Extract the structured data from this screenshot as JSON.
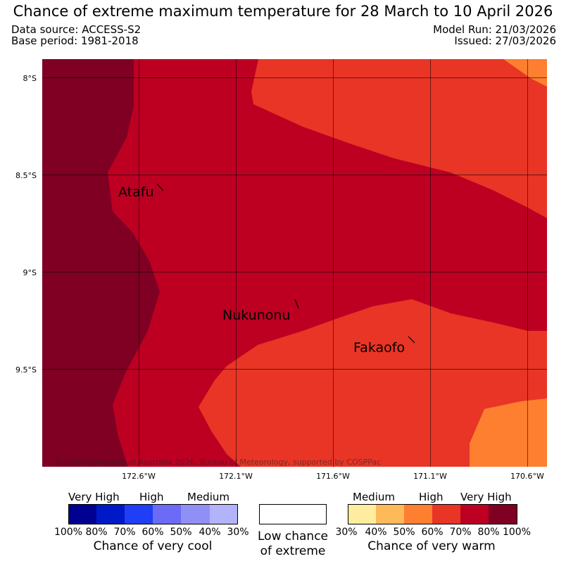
{
  "title": "Chance of extreme maximum temperature for 28 March to 10 April 2026",
  "meta": {
    "data_source": "Data source: ACCESS-S2",
    "base_period": "Base period: 1981-2018",
    "model_run": "Model Run: 21/03/2026",
    "issued": "Issued: 27/03/2026"
  },
  "map": {
    "lat_labels": [
      "8°S",
      "8.5°S",
      "9°S",
      "9.5°S"
    ],
    "lon_labels": [
      "172.6°W",
      "172.1°W",
      "171.6°W",
      "171.1°W",
      "170.6°W"
    ],
    "places": [
      "Atafu",
      "Nukunonu",
      "Fakaofo"
    ],
    "copyright": "© Commonwealth of Australia 2026, Bureau of Meteorology, supported by COSPPac"
  },
  "colors": {
    "very_warm_80_100": "#7f0022",
    "very_warm_70_80": "#bd0022",
    "high_60_70": "#e83526",
    "medium_50_60": "#fd7f2f",
    "medium_40_50": "#feba59",
    "low_30_40": "#ffed9f",
    "cool_100": "#000091",
    "cool_80": "#0019c8",
    "cool_70": "#1f3ef5",
    "cool_60": "#6b6bf5",
    "cool_50": "#8f8ff5",
    "cool_40": "#b3b3fb",
    "grid": "#000000"
  },
  "legend": {
    "cool": {
      "category_labels": [
        "Very High",
        "High",
        "Medium"
      ],
      "ticks": [
        "100%",
        "80%",
        "70%",
        "60%",
        "50%",
        "40%",
        "30%"
      ],
      "caption": "Chance of very cool"
    },
    "neutral": {
      "caption_line1": "Low chance",
      "caption_line2": "of extreme"
    },
    "warm": {
      "category_labels": [
        "Medium",
        "High",
        "Very High"
      ],
      "ticks": [
        "30%",
        "40%",
        "50%",
        "60%",
        "70%",
        "80%",
        "100%"
      ],
      "caption": "Chance of very warm"
    }
  }
}
